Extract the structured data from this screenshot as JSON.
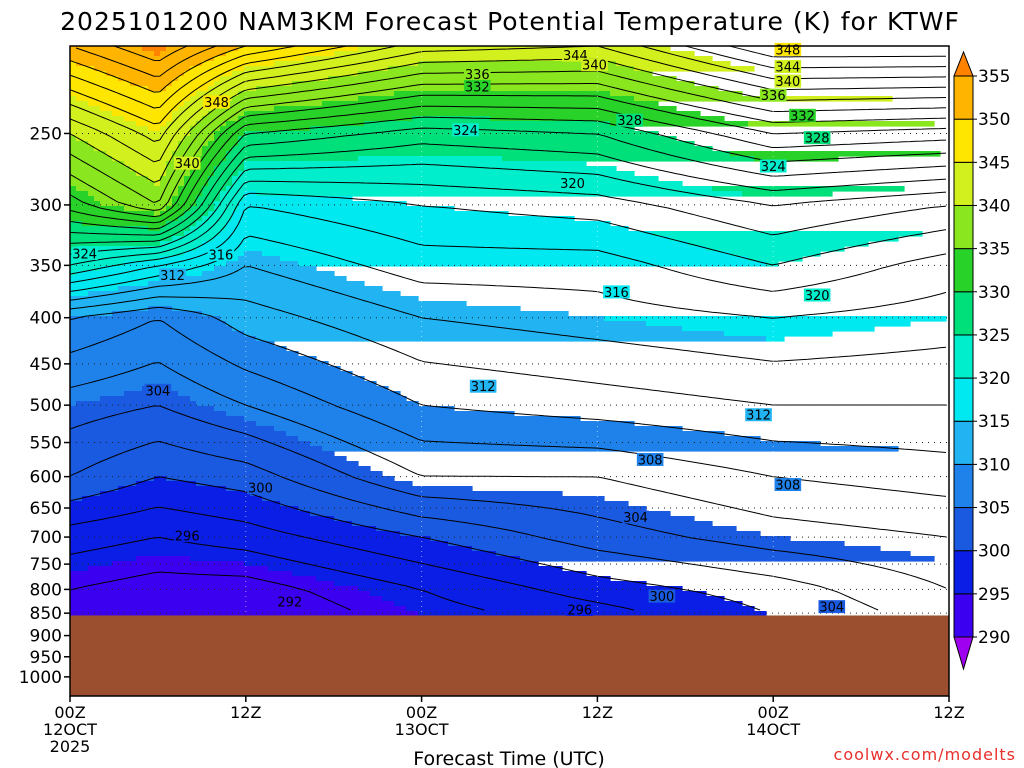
{
  "chart_data": {
    "type": "heatmap",
    "title": "2025101200 NAM3KM Forecast Potential Temperature (K) for KTWF",
    "xlabel": "Forecast Time (UTC)",
    "ylabel": "",
    "y_ticks": [
      "250",
      "300",
      "350",
      "400",
      "450",
      "500",
      "550",
      "600",
      "650",
      "700",
      "750",
      "800",
      "850",
      "900",
      "950",
      "1000"
    ],
    "x_ticks": [
      {
        "hour": 0,
        "lines": [
          "00Z",
          "12OCT",
          "2025"
        ]
      },
      {
        "hour": 12,
        "lines": [
          "12Z"
        ]
      },
      {
        "hour": 24,
        "lines": [
          "00Z",
          "13OCT"
        ]
      },
      {
        "hour": 36,
        "lines": [
          "12Z"
        ]
      },
      {
        "hour": 48,
        "lines": [
          "00Z",
          "14OCT"
        ]
      },
      {
        "hour": 60,
        "lines": [
          "12Z"
        ]
      }
    ],
    "x_range_hours": [
      0,
      60
    ],
    "y_range_hpa": [
      200,
      1050
    ],
    "y_scale": "log",
    "grid": "dotted",
    "surface_pressure_hpa": 855,
    "surface_color": "#9c4f2e",
    "colorbar": {
      "levels": [
        290,
        295,
        300,
        305,
        310,
        315,
        320,
        325,
        330,
        335,
        340,
        345,
        350,
        355
      ],
      "colors": [
        "#a000f0",
        "#3c00f0",
        "#0a1ee6",
        "#1a5ae0",
        "#1e82ea",
        "#22b4f2",
        "#00e8f0",
        "#00eecc",
        "#00e07a",
        "#28d228",
        "#8ae61e",
        "#d2f01e",
        "#ffe600",
        "#ffb400",
        "#ff8200"
      ],
      "placement": "right"
    },
    "field_profiles": [
      {
        "hour": 0,
        "theta": [
          [
            200,
            352
          ],
          [
            250,
            340
          ],
          [
            300,
            333
          ],
          [
            350,
            322
          ],
          [
            400,
            310
          ],
          [
            500,
            305
          ],
          [
            600,
            302
          ],
          [
            700,
            297
          ],
          [
            800,
            294
          ],
          [
            855,
            293
          ]
        ]
      },
      {
        "hour": 6,
        "theta": [
          [
            200,
            356
          ],
          [
            250,
            345
          ],
          [
            300,
            338
          ],
          [
            350,
            318
          ],
          [
            400,
            308
          ],
          [
            500,
            304
          ],
          [
            600,
            300
          ],
          [
            700,
            296
          ],
          [
            800,
            293
          ],
          [
            855,
            292
          ]
        ]
      },
      {
        "hour": 12,
        "theta": [
          [
            200,
            350
          ],
          [
            250,
            330
          ],
          [
            300,
            318
          ],
          [
            350,
            314
          ],
          [
            400,
            311
          ],
          [
            500,
            306
          ],
          [
            600,
            301
          ],
          [
            700,
            297
          ],
          [
            800,
            293
          ],
          [
            855,
            292
          ]
        ]
      },
      {
        "hour": 24,
        "theta": [
          [
            200,
            343
          ],
          [
            250,
            327
          ],
          [
            300,
            320
          ],
          [
            350,
            317
          ],
          [
            400,
            314
          ],
          [
            500,
            310
          ],
          [
            600,
            306
          ],
          [
            700,
            300
          ],
          [
            800,
            296
          ],
          [
            855,
            295
          ]
        ]
      },
      {
        "hour": 36,
        "theta": [
          [
            200,
            342
          ],
          [
            250,
            328
          ],
          [
            300,
            321
          ],
          [
            350,
            317
          ],
          [
            400,
            315
          ],
          [
            500,
            311
          ],
          [
            600,
            306
          ],
          [
            700,
            303
          ],
          [
            800,
            299
          ],
          [
            855,
            297
          ]
        ]
      },
      {
        "hour": 48,
        "theta": [
          [
            200,
            350
          ],
          [
            250,
            334
          ],
          [
            300,
            324
          ],
          [
            350,
            320
          ],
          [
            400,
            316
          ],
          [
            500,
            312
          ],
          [
            600,
            308
          ],
          [
            700,
            305
          ],
          [
            800,
            301
          ],
          [
            855,
            300
          ]
        ]
      },
      {
        "hour": 60,
        "theta": [
          [
            200,
            350
          ],
          [
            250,
            333
          ],
          [
            300,
            322
          ],
          [
            350,
            317
          ],
          [
            400,
            315
          ],
          [
            500,
            312
          ],
          [
            600,
            309
          ],
          [
            700,
            306
          ],
          [
            800,
            304
          ],
          [
            855,
            303
          ]
        ]
      }
    ],
    "contour_labels": [
      {
        "text": "344",
        "hour": 34.5,
        "hpa": 205
      },
      {
        "text": "340",
        "hour": 35.8,
        "hpa": 210
      },
      {
        "text": "336",
        "hour": 27.8,
        "hpa": 215
      },
      {
        "text": "332",
        "hour": 27.8,
        "hpa": 222
      },
      {
        "text": "328",
        "hour": 38.2,
        "hpa": 242
      },
      {
        "text": "324",
        "hour": 27.0,
        "hpa": 248
      },
      {
        "text": "320",
        "hour": 34.3,
        "hpa": 284
      },
      {
        "text": "316",
        "hour": 37.3,
        "hpa": 375
      },
      {
        "text": "312",
        "hour": 28.2,
        "hpa": 477
      },
      {
        "text": "308",
        "hour": 39.6,
        "hpa": 575
      },
      {
        "text": "304",
        "hour": 38.6,
        "hpa": 666
      },
      {
        "text": "300",
        "hour": 40.4,
        "hpa": 815
      },
      {
        "text": "296",
        "hour": 34.8,
        "hpa": 843
      },
      {
        "text": "348",
        "hour": 10.0,
        "hpa": 231
      },
      {
        "text": "340",
        "hour": 8.0,
        "hpa": 270
      },
      {
        "text": "324",
        "hour": 1.0,
        "hpa": 340
      },
      {
        "text": "316",
        "hour": 10.3,
        "hpa": 341
      },
      {
        "text": "312",
        "hour": 7.0,
        "hpa": 359
      },
      {
        "text": "304",
        "hour": 6.0,
        "hpa": 482
      },
      {
        "text": "300",
        "hour": 13.0,
        "hpa": 618
      },
      {
        "text": "296",
        "hour": 8.0,
        "hpa": 698
      },
      {
        "text": "292",
        "hour": 15.0,
        "hpa": 826
      },
      {
        "text": "348",
        "hour": 49.0,
        "hpa": 202
      },
      {
        "text": "344",
        "hour": 49.0,
        "hpa": 211
      },
      {
        "text": "340",
        "hour": 49.0,
        "hpa": 219
      },
      {
        "text": "336",
        "hour": 48.0,
        "hpa": 227
      },
      {
        "text": "332",
        "hour": 50.0,
        "hpa": 239
      },
      {
        "text": "328",
        "hour": 51.0,
        "hpa": 253
      },
      {
        "text": "324",
        "hour": 48.0,
        "hpa": 272
      },
      {
        "text": "320",
        "hour": 51.0,
        "hpa": 378
      },
      {
        "text": "312",
        "hour": 47.0,
        "hpa": 513
      },
      {
        "text": "308",
        "hour": 49.0,
        "hpa": 613
      },
      {
        "text": "304",
        "hour": 52.0,
        "hpa": 837
      }
    ]
  },
  "credit": "coolwx.com/modelts",
  "colors": {
    "frame": "#000000",
    "grid": "#222222",
    "credit": "#e8302c",
    "surface": "#9c4f2e"
  }
}
